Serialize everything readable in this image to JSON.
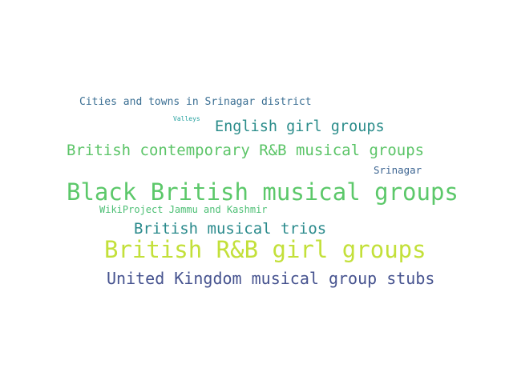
{
  "words": [
    {
      "text": "Cities and towns in Srinagar district",
      "color": "#3b6f93"
    },
    {
      "text": "Valleys",
      "color": "#2aa3a1"
    },
    {
      "text": "English girl groups",
      "color": "#2a8c8a"
    },
    {
      "text": "British contemporary R&B musical groups",
      "color": "#5bc467"
    },
    {
      "text": "Srinagar",
      "color": "#3d6592"
    },
    {
      "text": "Black British musical groups",
      "color": "#5cc86a"
    },
    {
      "text": "WikiProject Jammu and Kashmir",
      "color": "#4cbf74"
    },
    {
      "text": "British musical trios",
      "color": "#2a8a8c"
    },
    {
      "text": "British R&B girl groups",
      "color": "#c3e03a"
    },
    {
      "text": "United Kingdom musical group stubs",
      "color": "#46538f"
    }
  ]
}
